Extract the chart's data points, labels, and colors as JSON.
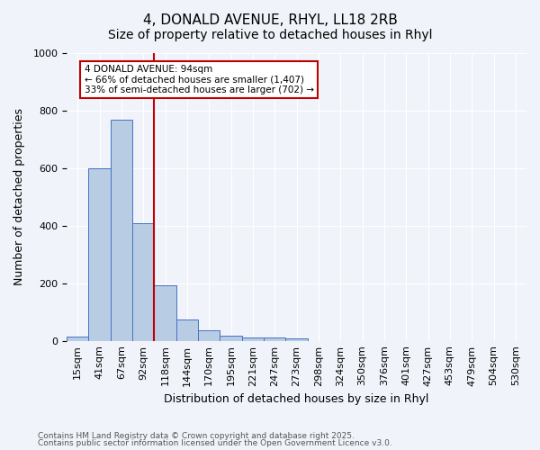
{
  "title1": "4, DONALD AVENUE, RHYL, LL18 2RB",
  "title2": "Size of property relative to detached houses in Rhyl",
  "xlabel": "Distribution of detached houses by size in Rhyl",
  "ylabel": "Number of detached properties",
  "bin_labels": [
    "15sqm",
    "41sqm",
    "67sqm",
    "92sqm",
    "118sqm",
    "144sqm",
    "170sqm",
    "195sqm",
    "221sqm",
    "247sqm",
    "273sqm",
    "298sqm",
    "324sqm",
    "350sqm",
    "376sqm",
    "401sqm",
    "427sqm",
    "453sqm",
    "479sqm",
    "504sqm",
    "530sqm"
  ],
  "bar_values": [
    15,
    600,
    770,
    410,
    192,
    75,
    38,
    18,
    12,
    13,
    8,
    0,
    0,
    0,
    0,
    0,
    0,
    0,
    0,
    0,
    0
  ],
  "bar_color": "#b8cce4",
  "bar_edge_color": "#4472c4",
  "property_line_x": 3,
  "property_line_color": "#c00000",
  "annotation_text": "4 DONALD AVENUE: 94sqm\n← 66% of detached houses are smaller (1,407)\n33% of semi-detached houses are larger (702) →",
  "annotation_box_color": "#ffffff",
  "annotation_box_edge": "#c00000",
  "ylim": [
    0,
    1000
  ],
  "footnote1": "Contains HM Land Registry data © Crown copyright and database right 2025.",
  "footnote2": "Contains public sector information licensed under the Open Government Licence v3.0.",
  "background_color": "#f0f4fa",
  "grid_color": "#ffffff",
  "title_fontsize": 11,
  "subtitle_fontsize": 10,
  "axis_fontsize": 9,
  "tick_fontsize": 8
}
